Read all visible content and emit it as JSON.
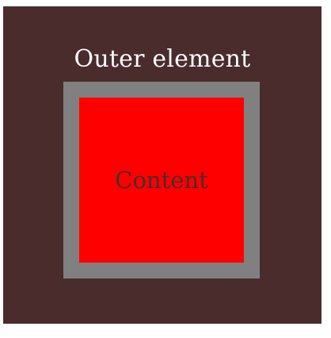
{
  "diagram": {
    "outer_label": "Outer element",
    "content_label": "Content"
  },
  "colors": {
    "outer_background": "#4a2c2c",
    "outer_label_text": "#ffffff",
    "border": "#808080",
    "content_background": "#ff0000",
    "content_label_text": "#4a2c2c"
  }
}
